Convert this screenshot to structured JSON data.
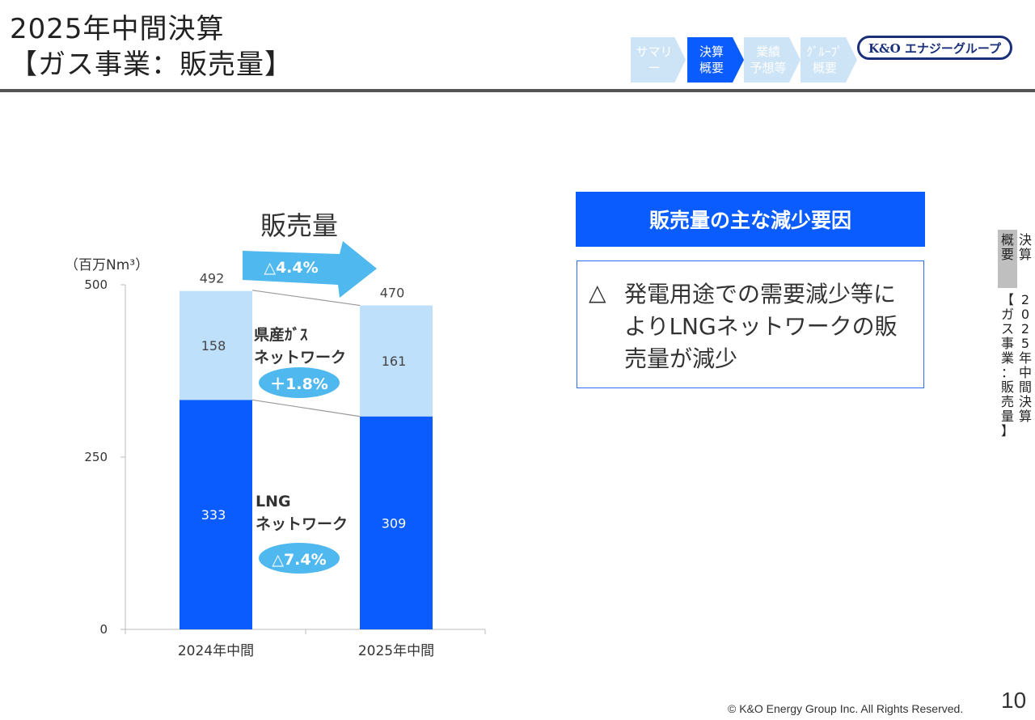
{
  "header": {
    "title_line1": "2025年中間決算",
    "title_line2": "【ガス事業：販売量】"
  },
  "nav": {
    "steps": [
      {
        "label": "サマリー",
        "active": false
      },
      {
        "label": "決算\n概要",
        "active": true
      },
      {
        "label": "業績\n予想等",
        "active": false
      },
      {
        "label": "ｸﾞﾙｰﾌﾟ\n概要",
        "active": false
      }
    ],
    "logo_text": "K&O エナジーグループ"
  },
  "side_tab": {
    "col1": "決算",
    "col2": "概要",
    "col3": "2025年中間決算",
    "col4": "【ガス事業：販売量】"
  },
  "chart_data": {
    "type": "bar",
    "stacked": true,
    "title": "販売量",
    "unit_label": "（百万Nm³）",
    "categories": [
      "2024年中間",
      "2025年中間"
    ],
    "series": [
      {
        "name": "LNG\nネットワーク",
        "values": [
          333,
          309
        ],
        "color": "#0b5cff"
      },
      {
        "name": "県産ｶﾞｽ\nネットワーク",
        "values": [
          158,
          161
        ],
        "color": "#bfe0fb"
      }
    ],
    "totals": [
      492,
      470
    ],
    "ylim": [
      0,
      500
    ],
    "yticks": [
      0,
      250,
      500
    ],
    "changes": {
      "total": "△4.4%",
      "upper": "＋1.8%",
      "lower": "△7.4%"
    }
  },
  "callout": {
    "heading": "販売量の主な減少要因",
    "mark": "△",
    "text": "発電用途での需要減少等によりLNGネットワークの販売量が減少"
  },
  "footer": {
    "copyright": "© K&O Energy Group Inc. All Rights Reserved.",
    "page": "10"
  },
  "colors": {
    "accent": "#0b5cff",
    "light_blue": "#bfe0fb",
    "badge": "#4fb8ee"
  }
}
